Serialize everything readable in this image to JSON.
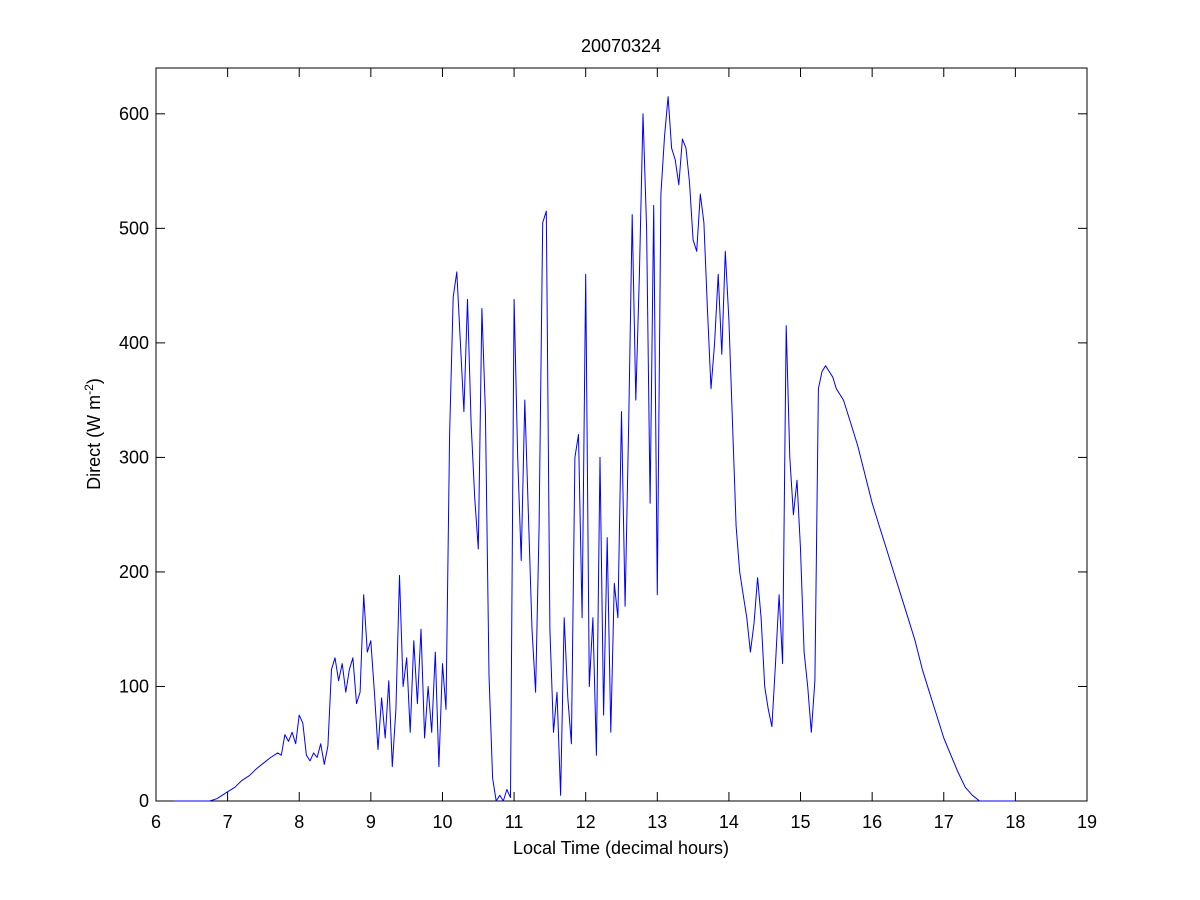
{
  "chart_data": {
    "type": "line",
    "title": "20070324",
    "xlabel": "Local Time (decimal hours)",
    "ylabel": "Direct (W m",
    "ylabel_superscript": "-2",
    "ylabel_suffix": ")",
    "xlim": [
      6,
      19
    ],
    "ylim": [
      0,
      640
    ],
    "xticks": [
      6,
      7,
      8,
      9,
      10,
      11,
      12,
      13,
      14,
      15,
      16,
      17,
      18,
      19
    ],
    "yticks": [
      0,
      100,
      200,
      300,
      400,
      500,
      600
    ],
    "grid": false,
    "legend": "none",
    "series": [
      {
        "color": "#0000ff",
        "points": [
          [
            6.25,
            0
          ],
          [
            6.5,
            0
          ],
          [
            6.75,
            0
          ],
          [
            6.85,
            2
          ],
          [
            7.0,
            8
          ],
          [
            7.1,
            12
          ],
          [
            7.2,
            18
          ],
          [
            7.3,
            22
          ],
          [
            7.4,
            28
          ],
          [
            7.5,
            33
          ],
          [
            7.6,
            38
          ],
          [
            7.7,
            42
          ],
          [
            7.75,
            40
          ],
          [
            7.8,
            58
          ],
          [
            7.85,
            52
          ],
          [
            7.9,
            60
          ],
          [
            7.95,
            50
          ],
          [
            8.0,
            75
          ],
          [
            8.05,
            68
          ],
          [
            8.1,
            40
          ],
          [
            8.15,
            35
          ],
          [
            8.2,
            42
          ],
          [
            8.25,
            38
          ],
          [
            8.3,
            50
          ],
          [
            8.35,
            32
          ],
          [
            8.4,
            48
          ],
          [
            8.45,
            115
          ],
          [
            8.5,
            125
          ],
          [
            8.55,
            105
          ],
          [
            8.6,
            120
          ],
          [
            8.65,
            95
          ],
          [
            8.7,
            115
          ],
          [
            8.75,
            125
          ],
          [
            8.8,
            85
          ],
          [
            8.85,
            95
          ],
          [
            8.9,
            180
          ],
          [
            8.95,
            130
          ],
          [
            9.0,
            140
          ],
          [
            9.05,
            95
          ],
          [
            9.1,
            45
          ],
          [
            9.15,
            90
          ],
          [
            9.2,
            55
          ],
          [
            9.25,
            105
          ],
          [
            9.3,
            30
          ],
          [
            9.35,
            80
          ],
          [
            9.4,
            197
          ],
          [
            9.45,
            100
          ],
          [
            9.5,
            125
          ],
          [
            9.55,
            60
          ],
          [
            9.6,
            140
          ],
          [
            9.65,
            85
          ],
          [
            9.7,
            150
          ],
          [
            9.75,
            55
          ],
          [
            9.8,
            100
          ],
          [
            9.85,
            60
          ],
          [
            9.9,
            130
          ],
          [
            9.95,
            30
          ],
          [
            10.0,
            120
          ],
          [
            10.05,
            80
          ],
          [
            10.1,
            320
          ],
          [
            10.15,
            440
          ],
          [
            10.2,
            462
          ],
          [
            10.25,
            400
          ],
          [
            10.3,
            340
          ],
          [
            10.35,
            438
          ],
          [
            10.4,
            330
          ],
          [
            10.45,
            265
          ],
          [
            10.5,
            220
          ],
          [
            10.55,
            430
          ],
          [
            10.6,
            340
          ],
          [
            10.65,
            110
          ],
          [
            10.7,
            20
          ],
          [
            10.75,
            0
          ],
          [
            10.8,
            5
          ],
          [
            10.85,
            0
          ],
          [
            10.9,
            10
          ],
          [
            10.95,
            3
          ],
          [
            11.0,
            438
          ],
          [
            11.05,
            300
          ],
          [
            11.1,
            210
          ],
          [
            11.15,
            350
          ],
          [
            11.2,
            250
          ],
          [
            11.25,
            150
          ],
          [
            11.3,
            95
          ],
          [
            11.35,
            240
          ],
          [
            11.4,
            505
          ],
          [
            11.45,
            515
          ],
          [
            11.5,
            150
          ],
          [
            11.55,
            60
          ],
          [
            11.6,
            95
          ],
          [
            11.65,
            5
          ],
          [
            11.7,
            160
          ],
          [
            11.75,
            90
          ],
          [
            11.8,
            50
          ],
          [
            11.85,
            300
          ],
          [
            11.9,
            320
          ],
          [
            11.95,
            160
          ],
          [
            12.0,
            460
          ],
          [
            12.05,
            100
          ],
          [
            12.1,
            160
          ],
          [
            12.15,
            40
          ],
          [
            12.2,
            300
          ],
          [
            12.25,
            75
          ],
          [
            12.3,
            230
          ],
          [
            12.35,
            60
          ],
          [
            12.4,
            190
          ],
          [
            12.45,
            160
          ],
          [
            12.5,
            340
          ],
          [
            12.55,
            170
          ],
          [
            12.6,
            330
          ],
          [
            12.65,
            512
          ],
          [
            12.7,
            350
          ],
          [
            12.75,
            460
          ],
          [
            12.8,
            600
          ],
          [
            12.85,
            500
          ],
          [
            12.9,
            260
          ],
          [
            12.95,
            520
          ],
          [
            13.0,
            180
          ],
          [
            13.05,
            530
          ],
          [
            13.1,
            580
          ],
          [
            13.15,
            615
          ],
          [
            13.2,
            570
          ],
          [
            13.25,
            560
          ],
          [
            13.3,
            538
          ],
          [
            13.35,
            578
          ],
          [
            13.4,
            570
          ],
          [
            13.45,
            540
          ],
          [
            13.5,
            490
          ],
          [
            13.55,
            480
          ],
          [
            13.6,
            530
          ],
          [
            13.65,
            505
          ],
          [
            13.7,
            430
          ],
          [
            13.75,
            360
          ],
          [
            13.8,
            400
          ],
          [
            13.85,
            460
          ],
          [
            13.9,
            390
          ],
          [
            13.95,
            480
          ],
          [
            14.0,
            420
          ],
          [
            14.05,
            330
          ],
          [
            14.1,
            240
          ],
          [
            14.15,
            200
          ],
          [
            14.2,
            180
          ],
          [
            14.25,
            160
          ],
          [
            14.3,
            130
          ],
          [
            14.35,
            155
          ],
          [
            14.4,
            195
          ],
          [
            14.45,
            160
          ],
          [
            14.5,
            100
          ],
          [
            14.55,
            80
          ],
          [
            14.6,
            65
          ],
          [
            14.65,
            120
          ],
          [
            14.7,
            180
          ],
          [
            14.75,
            120
          ],
          [
            14.8,
            415
          ],
          [
            14.85,
            300
          ],
          [
            14.9,
            250
          ],
          [
            14.95,
            280
          ],
          [
            15.0,
            220
          ],
          [
            15.05,
            130
          ],
          [
            15.1,
            100
          ],
          [
            15.15,
            60
          ],
          [
            15.2,
            105
          ],
          [
            15.25,
            360
          ],
          [
            15.3,
            375
          ],
          [
            15.35,
            380
          ],
          [
            15.4,
            375
          ],
          [
            15.45,
            370
          ],
          [
            15.5,
            360
          ],
          [
            15.6,
            350
          ],
          [
            15.7,
            330
          ],
          [
            15.8,
            310
          ],
          [
            15.9,
            285
          ],
          [
            16.0,
            260
          ],
          [
            16.1,
            240
          ],
          [
            16.2,
            220
          ],
          [
            16.3,
            200
          ],
          [
            16.4,
            180
          ],
          [
            16.5,
            160
          ],
          [
            16.6,
            140
          ],
          [
            16.7,
            115
          ],
          [
            16.8,
            95
          ],
          [
            16.9,
            75
          ],
          [
            17.0,
            55
          ],
          [
            17.1,
            40
          ],
          [
            17.2,
            25
          ],
          [
            17.3,
            12
          ],
          [
            17.4,
            5
          ],
          [
            17.5,
            0
          ],
          [
            18.0,
            0
          ]
        ]
      }
    ]
  }
}
